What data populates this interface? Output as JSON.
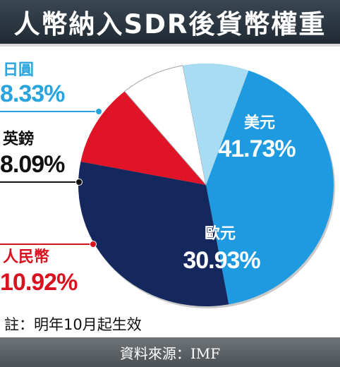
{
  "title": "人幣納入SDR後貨幣權重",
  "chart_data": {
    "type": "pie",
    "categories": [
      "美元",
      "歐元",
      "人民幣",
      "英鎊",
      "日圓"
    ],
    "values": [
      41.73,
      30.93,
      10.92,
      8.09,
      8.33
    ],
    "value_labels": [
      "41.73%",
      "30.93%",
      "10.92%",
      "8.09%",
      "8.33%"
    ],
    "colors": [
      "#1e9ae0",
      "#14285e",
      "#e01426",
      "#ffffff",
      "#a8dcf2"
    ],
    "label_colors": [
      "#ffffff",
      "#ffffff",
      "#d8121f",
      "#111111",
      "#29a4dc"
    ]
  },
  "note": "註：明年10月起生效",
  "source": "資料來源：IMF"
}
